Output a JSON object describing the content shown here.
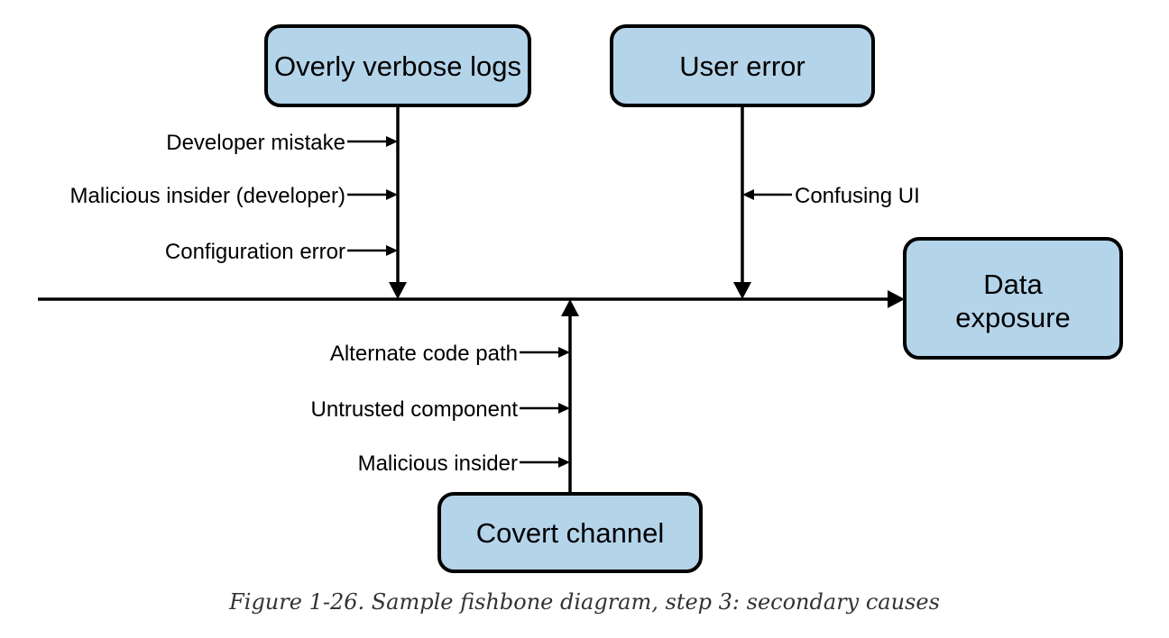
{
  "effect": {
    "label_line1": "Data",
    "label_line2": "exposure"
  },
  "causes": {
    "verbose_logs": {
      "label": "Overly verbose logs",
      "secondary": [
        "Developer mistake",
        "Malicious insider (developer)",
        "Configuration error"
      ]
    },
    "user_error": {
      "label": "User error",
      "secondary": [
        "Confusing UI"
      ]
    },
    "covert_channel": {
      "label": "Covert channel",
      "secondary": [
        "Alternate code path",
        "Untrusted component",
        "Malicious insider"
      ]
    }
  },
  "caption": "Figure 1-26. Sample fishbone diagram, step 3: secondary causes"
}
